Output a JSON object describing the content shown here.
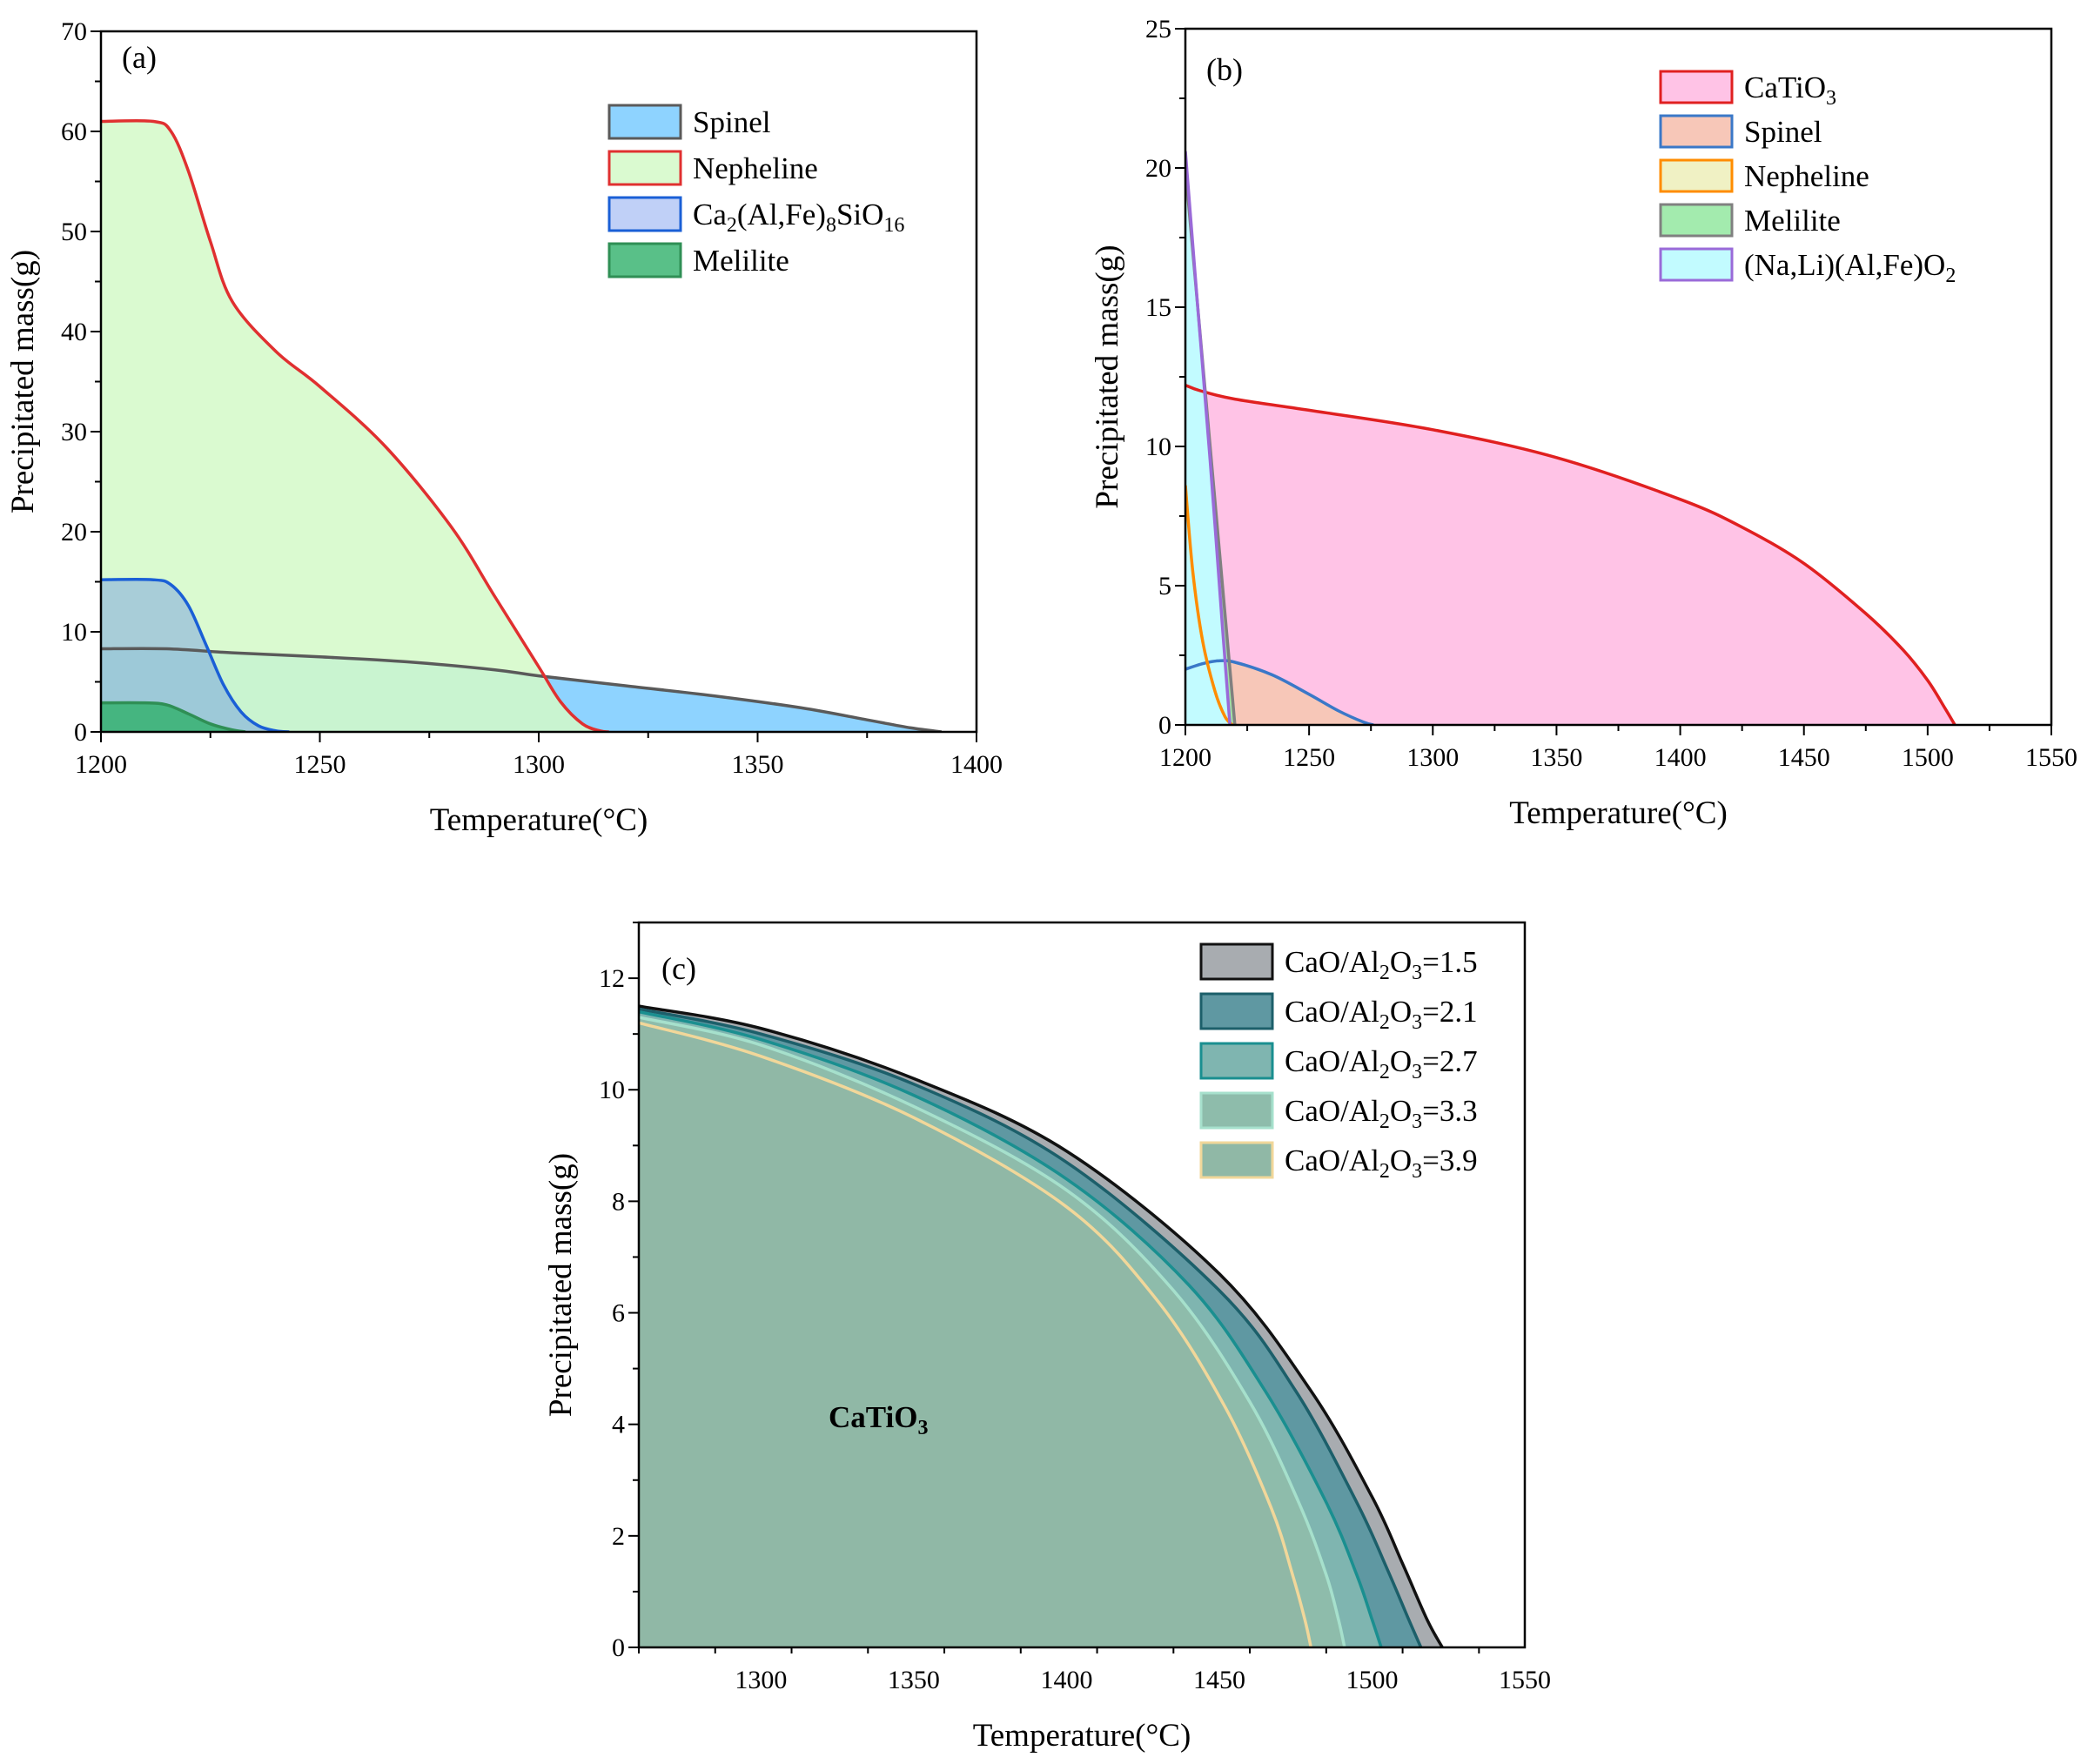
{
  "chart_data": [
    {
      "type": "area",
      "panel_label": "(a)",
      "xlabel": "Temperature(°C)",
      "ylabel": "Precipitated mass(g)",
      "xlim": [
        1200,
        1400
      ],
      "ylim": [
        0,
        70
      ],
      "xticks": [
        1200,
        1250,
        1300,
        1350,
        1400
      ],
      "yticks": [
        0,
        10,
        20,
        30,
        40,
        50,
        60,
        70
      ],
      "legend_position": "top-right",
      "series": [
        {
          "name": "Spinel",
          "legend_parts": [
            {
              "t": "Spinel"
            }
          ],
          "fill": "#8ed3ff",
          "stroke": "#5a5a5a",
          "x": [
            1200,
            1215,
            1230,
            1250,
            1270,
            1290,
            1300,
            1320,
            1340,
            1360,
            1375,
            1385,
            1392
          ],
          "y": [
            8.3,
            8.3,
            7.9,
            7.5,
            7.0,
            6.2,
            5.6,
            4.6,
            3.6,
            2.4,
            1.2,
            0.4,
            0
          ]
        },
        {
          "name": "Nepheline",
          "legend_parts": [
            {
              "t": "Nepheline"
            }
          ],
          "fill": "#d4f9c8",
          "fill_opacity": 0.85,
          "stroke": "#e03030",
          "x": [
            1200,
            1212,
            1216,
            1220,
            1225,
            1230,
            1240,
            1250,
            1265,
            1280,
            1290,
            1300,
            1305,
            1310,
            1314,
            1316
          ],
          "y": [
            61,
            61,
            60,
            56,
            49,
            43,
            38,
            34.5,
            28.5,
            20.5,
            13.5,
            6.5,
            3.0,
            0.8,
            0.1,
            0
          ]
        },
        {
          "name": "Ca2(Al,Fe)8SiO16",
          "legend_parts": [
            {
              "t": "Ca"
            },
            {
              "t": "2",
              "sub": true
            },
            {
              "t": "(Al,Fe)"
            },
            {
              "t": "8",
              "sub": true
            },
            {
              "t": "SiO"
            },
            {
              "t": "16",
              "sub": true
            }
          ],
          "fill": "#4a78e8",
          "fill_opacity": 0.35,
          "stroke": "#1a5fd6",
          "x": [
            1200,
            1212,
            1216,
            1220,
            1224,
            1228,
            1232,
            1236,
            1240,
            1243
          ],
          "y": [
            15.2,
            15.2,
            14.7,
            12.6,
            8.7,
            4.7,
            2.0,
            0.6,
            0.1,
            0
          ]
        },
        {
          "name": "Melilite",
          "legend_parts": [
            {
              "t": "Melilite"
            }
          ],
          "fill": "#2fb06a",
          "fill_opacity": 0.8,
          "stroke": "#2f8f55",
          "x": [
            1200,
            1210,
            1215,
            1220,
            1225,
            1230,
            1233
          ],
          "y": [
            2.9,
            2.9,
            2.7,
            1.8,
            0.8,
            0.2,
            0
          ]
        }
      ]
    },
    {
      "type": "area",
      "panel_label": "(b)",
      "xlabel": "Temperature(°C)",
      "ylabel": "Precipitated mass(g)",
      "xlim": [
        1200,
        1550
      ],
      "ylim": [
        0,
        25
      ],
      "xticks": [
        1200,
        1250,
        1300,
        1350,
        1400,
        1450,
        1500,
        1550
      ],
      "yticks": [
        0,
        5,
        10,
        15,
        20,
        25
      ],
      "legend_position": "top-right",
      "series": [
        {
          "name": "CaTiO3",
          "legend_parts": [
            {
              "t": "CaTiO"
            },
            {
              "t": "3",
              "sub": true
            }
          ],
          "fill": "#ffc3e6",
          "stroke": "#e02020",
          "x": [
            1200,
            1206,
            1220,
            1250,
            1300,
            1350,
            1400,
            1425,
            1450,
            1475,
            1490,
            1500,
            1507,
            1511
          ],
          "y": [
            12.2,
            12.0,
            11.7,
            11.3,
            10.6,
            9.6,
            8.1,
            7.1,
            5.8,
            4.0,
            2.7,
            1.6,
            0.6,
            0
          ]
        },
        {
          "name": "Spinel",
          "legend_parts": [
            {
              "t": "Spinel"
            }
          ],
          "fill": "#f7c7b8",
          "stroke": "#3a78c8",
          "x": [
            1200,
            1207,
            1213,
            1220,
            1235,
            1250,
            1262,
            1272,
            1276
          ],
          "y": [
            2.0,
            2.2,
            2.3,
            2.25,
            1.8,
            1.1,
            0.5,
            0.1,
            0
          ]
        },
        {
          "name": "Nepheline",
          "legend_parts": [
            {
              "t": "Nepheline"
            }
          ],
          "fill": "#eef0be",
          "fill_opacity": 0.9,
          "stroke": "#ff8c00",
          "x": [
            1200,
            1203,
            1207,
            1212,
            1216,
            1219
          ],
          "y": [
            8.6,
            5.5,
            3.0,
            1.2,
            0.3,
            0
          ]
        },
        {
          "name": "Melilite",
          "legend_parts": [
            {
              "t": "Melilite"
            }
          ],
          "fill": "#93e8a0",
          "fill_opacity": 0.85,
          "stroke": "#808080",
          "x": [
            1200,
            1205,
            1210,
            1215,
            1220
          ],
          "y": [
            20.0,
            15.0,
            10.0,
            5.0,
            0
          ]
        },
        {
          "name": "(Na,Li)(Al,Fe)O2",
          "legend_parts": [
            {
              "t": "(Na,Li)(Al,Fe)O"
            },
            {
              "t": "2",
              "sub": true
            }
          ],
          "fill": "#c2fbff",
          "stroke": "#9a6ad8",
          "x": [
            1200,
            1205,
            1210,
            1215,
            1218
          ],
          "y": [
            20.6,
            15.0,
            9.5,
            3.5,
            0
          ]
        }
      ]
    },
    {
      "type": "area",
      "panel_label": "(c)",
      "xlabel": "Temperature(°C)",
      "ylabel": "Precipitated mass(g)",
      "xlim": [
        1260,
        1550
      ],
      "ylim": [
        0,
        13
      ],
      "xticks": [
        1300,
        1350,
        1400,
        1450,
        1500,
        1550
      ],
      "yticks": [
        0,
        2,
        4,
        6,
        8,
        10,
        12
      ],
      "legend_position": "top-right",
      "annotation_parts": [
        {
          "t": "CaTiO"
        },
        {
          "t": "3",
          "sub": true
        }
      ],
      "series": [
        {
          "name": "CaO/Al2O3=1.5",
          "legend_parts": [
            {
              "t": "CaO/Al"
            },
            {
              "t": "2",
              "sub": true
            },
            {
              "t": "O"
            },
            {
              "t": "3",
              "sub": true
            },
            {
              "t": "=1.5"
            }
          ],
          "fill": "#a8acb0",
          "stroke": "#111111",
          "x": [
            1260,
            1300,
            1350,
            1400,
            1450,
            1480,
            1500,
            1510,
            1518,
            1523
          ],
          "y": [
            11.5,
            11.1,
            10.2,
            8.9,
            6.7,
            4.6,
            2.7,
            1.5,
            0.5,
            0
          ]
        },
        {
          "name": "CaO/Al2O3=2.1",
          "legend_parts": [
            {
              "t": "CaO/Al"
            },
            {
              "t": "2",
              "sub": true
            },
            {
              "t": "O"
            },
            {
              "t": "3",
              "sub": true
            },
            {
              "t": "=2.1"
            }
          ],
          "fill": "#5f98a2",
          "stroke": "#1c5f6a",
          "x": [
            1260,
            1300,
            1350,
            1400,
            1450,
            1475,
            1495,
            1505,
            1512,
            1516
          ],
          "y": [
            11.45,
            11.0,
            10.1,
            8.7,
            6.4,
            4.6,
            2.6,
            1.4,
            0.5,
            0
          ]
        },
        {
          "name": "CaO/Al2O3=2.7",
          "legend_parts": [
            {
              "t": "CaO/Al"
            },
            {
              "t": "2",
              "sub": true
            },
            {
              "t": "O"
            },
            {
              "t": "3",
              "sub": true
            },
            {
              "t": "=2.7"
            }
          ],
          "fill": "#7fb5b0",
          "stroke": "#1a8f90",
          "x": [
            1260,
            1300,
            1350,
            1400,
            1440,
            1465,
            1485,
            1495,
            1500,
            1503
          ],
          "y": [
            11.4,
            10.9,
            9.9,
            8.4,
            6.5,
            4.6,
            2.6,
            1.3,
            0.5,
            0
          ]
        },
        {
          "name": "CaO/Al2O3=3.3",
          "legend_parts": [
            {
              "t": "CaO/Al"
            },
            {
              "t": "2",
              "sub": true
            },
            {
              "t": "O"
            },
            {
              "t": "3",
              "sub": true
            },
            {
              "t": "=3.3"
            }
          ],
          "fill": "#8ebcab",
          "stroke": "#a6e0cc",
          "x": [
            1260,
            1300,
            1350,
            1400,
            1435,
            1460,
            1476,
            1485,
            1489,
            1491
          ],
          "y": [
            11.3,
            10.8,
            9.7,
            8.2,
            6.4,
            4.4,
            2.6,
            1.3,
            0.5,
            0
          ]
        },
        {
          "name": "CaO/Al2O3=3.9",
          "legend_parts": [
            {
              "t": "CaO/Al"
            },
            {
              "t": "2",
              "sub": true
            },
            {
              "t": "O"
            },
            {
              "t": "3",
              "sub": true
            },
            {
              "t": "=3.9"
            }
          ],
          "fill": "#90b8a6",
          "stroke": "#f1d79a",
          "x": [
            1260,
            1300,
            1350,
            1400,
            1430,
            1452,
            1467,
            1474,
            1478,
            1480
          ],
          "y": [
            11.2,
            10.6,
            9.5,
            7.9,
            6.2,
            4.3,
            2.5,
            1.3,
            0.5,
            0
          ]
        }
      ]
    }
  ]
}
